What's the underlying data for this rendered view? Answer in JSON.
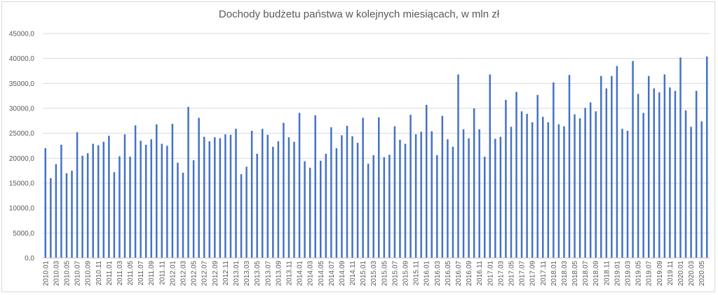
{
  "chart_data": {
    "type": "bar",
    "title": "Dochody budżetu państwa w kolejnych miesiącach, w mln zł",
    "xlabel": "",
    "ylabel": "",
    "ylim": [
      0,
      45000
    ],
    "y_ticks": [
      0,
      5000,
      10000,
      15000,
      20000,
      25000,
      30000,
      35000,
      40000,
      45000
    ],
    "y_tick_labels": [
      "0,0",
      "5000,0",
      "10000,0",
      "15000,0",
      "20000,0",
      "25000,0",
      "30000,0",
      "35000,0",
      "40000,0",
      "45000,0"
    ],
    "grid": true,
    "legend": "none",
    "bar_color": "#4472c4",
    "categories": [
      "2010.01",
      "2010.02",
      "2010.03",
      "2010.04",
      "2010.05",
      "2010.06",
      "2010.07",
      "2010.08",
      "2010.09",
      "2010.10",
      "2010.11",
      "2010.12",
      "2011.01",
      "2011.02",
      "2011.03",
      "2011.04",
      "2011.05",
      "2011.06",
      "2011.07",
      "2011.08",
      "2011.09",
      "2011.10",
      "2011.11",
      "2011.12",
      "2012.01",
      "2012.02",
      "2012.03",
      "2012.04",
      "2012.05",
      "2012.06",
      "2012.07",
      "2012.08",
      "2012.09",
      "2012.10",
      "2012.11",
      "2012.12",
      "2013.01",
      "2013.02",
      "2013.03",
      "2013.04",
      "2013.05",
      "2013.06",
      "2013.07",
      "2013.08",
      "2013.09",
      "2013.10",
      "2013.11",
      "2013.12",
      "2014.01",
      "2014.02",
      "2014.03",
      "2014.04",
      "2014.05",
      "2014.06",
      "2014.07",
      "2014.08",
      "2014.09",
      "2014.10",
      "2014.11",
      "2014.12",
      "2015.01",
      "2015.02",
      "2015.03",
      "2015.04",
      "2015.05",
      "2015.06",
      "2015.07",
      "2015.08",
      "2015.09",
      "2015.10",
      "2015.11",
      "2015.12",
      "2016.01",
      "2016.02",
      "2016.03",
      "2016.04",
      "2016.05",
      "2016.06",
      "2016.07",
      "2016.08",
      "2016.09",
      "2016.10",
      "2016.11",
      "2016.12",
      "2017.01",
      "2017.02",
      "2017.03",
      "2017.04",
      "2017.05",
      "2017.06",
      "2017.07",
      "2017.08",
      "2017.09",
      "2017.10",
      "2017.11",
      "2017.12",
      "2018.01",
      "2018.02",
      "2018.03",
      "2018.04",
      "2018.05",
      "2018.06",
      "2018.07",
      "2018.08",
      "2018.09",
      "2018.10",
      "2018.11",
      "2018.12",
      "2019.01",
      "2019.02",
      "2019.03",
      "2019.04",
      "2019.05",
      "2019.06",
      "2019.07",
      "2019.08",
      "2019.09",
      "2019.10",
      "2019.11",
      "2019.12",
      "2020.01",
      "2020.02",
      "2020.03",
      "2020.04",
      "2020.05",
      "2020.06"
    ],
    "labeled_categories": [
      "2010.01",
      "2010.03",
      "2010.05",
      "2010.07",
      "2010.09",
      "2010.11",
      "2011.01",
      "2011.03",
      "2011.05",
      "2011.07",
      "2011.09",
      "2011.11",
      "2012.01",
      "2012.03",
      "2012.05",
      "2012.07",
      "2012.09",
      "2012.11",
      "2013.01",
      "2013.03",
      "2013.05",
      "2013.07",
      "2013.09",
      "2013.11",
      "2014.01",
      "2014.03",
      "2014.05",
      "2014.07",
      "2014.09",
      "2014.11",
      "2015.01",
      "2015.03",
      "2015.05",
      "2015.07",
      "2015.09",
      "2015.11",
      "2016.01",
      "2016.03",
      "2016.05",
      "2016.07",
      "2016.09",
      "2016.11",
      "2017.01",
      "2017.03",
      "2017.05",
      "2017.07",
      "2017.09",
      "2017.11",
      "2018.01",
      "2018.03",
      "2018.05",
      "2018.07",
      "2018.09",
      "2018.11",
      "2019.01",
      "2019.03",
      "2019.05",
      "2019.07",
      "2019.09",
      "2019.11",
      "2020.01",
      "2020.03",
      "2020.05"
    ],
    "values": [
      22000,
      16000,
      18800,
      22700,
      17000,
      17500,
      25200,
      20500,
      21000,
      22900,
      22600,
      23300,
      24500,
      17200,
      20400,
      24800,
      20300,
      26600,
      23500,
      22700,
      23800,
      26800,
      22900,
      22500,
      26900,
      19100,
      17100,
      30300,
      19600,
      28100,
      24300,
      23400,
      24200,
      24000,
      24800,
      24700,
      25900,
      16800,
      18300,
      25500,
      20900,
      25900,
      24700,
      22300,
      23400,
      27100,
      24200,
      23300,
      29100,
      19400,
      18100,
      28600,
      19500,
      20900,
      26200,
      22000,
      24600,
      26500,
      24400,
      23100,
      28100,
      18900,
      20600,
      28200,
      20200,
      20700,
      26400,
      23700,
      22900,
      28700,
      24800,
      25300,
      30700,
      25400,
      20600,
      28500,
      23800,
      22300,
      36800,
      25800,
      24000,
      30000,
      25800,
      20300,
      36800,
      23900,
      24300,
      31700,
      26300,
      33300,
      29400,
      28900,
      27200,
      32700,
      28300,
      27200,
      35200,
      26800,
      26400,
      36700,
      28800,
      28000,
      30100,
      31200,
      29400,
      36500,
      34000,
      36500,
      38500,
      25900,
      25500,
      39500,
      32900,
      29100,
      36500,
      34000,
      33200,
      36800,
      34200,
      33500,
      40200,
      29600,
      26300,
      33500,
      27400,
      40400
    ]
  }
}
